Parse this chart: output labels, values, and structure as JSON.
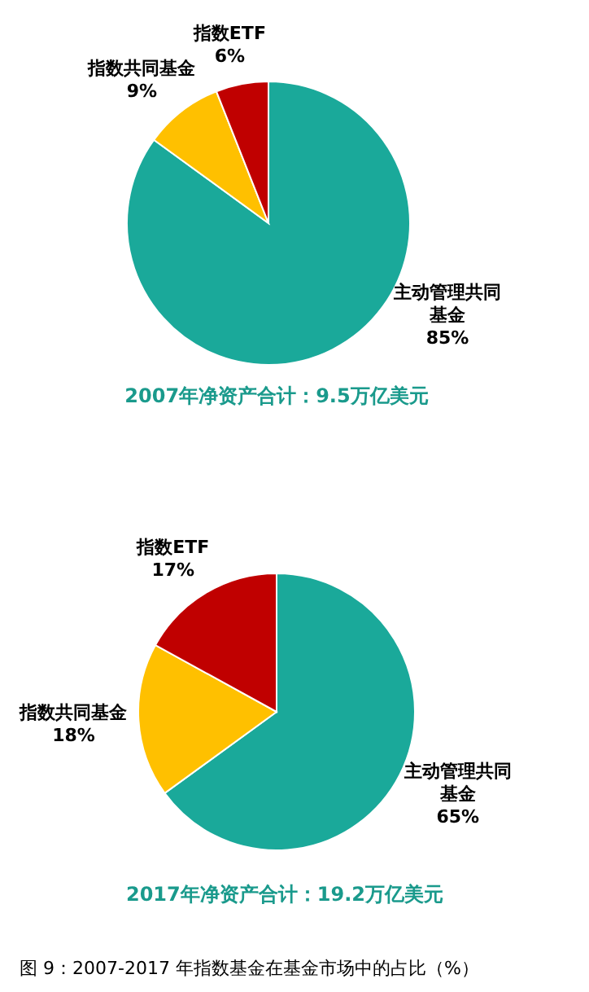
{
  "chart_data": [
    {
      "type": "pie",
      "title": "2007年净资产合计：9.5万亿美元",
      "categories": [
        "主动管理共同基金",
        "指数共同基金",
        "指数ETF"
      ],
      "values": [
        85,
        9,
        6
      ],
      "colors": [
        "#1aa99a",
        "#ffc000",
        "#c00000"
      ],
      "value_labels": [
        "85%",
        "9%",
        "6%"
      ]
    },
    {
      "type": "pie",
      "title": "2017年净资产合计：19.2万亿美元",
      "categories": [
        "主动管理共同基金",
        "指数共同基金",
        "指数ETF"
      ],
      "values": [
        65,
        18,
        17
      ],
      "colors": [
        "#1aa99a",
        "#ffc000",
        "#c00000"
      ],
      "value_labels": [
        "65%",
        "18%",
        "17%"
      ],
      "annotations": [
        "图 9：2007-2017 年指数基金在基金市场中的占比（%）"
      ]
    }
  ]
}
